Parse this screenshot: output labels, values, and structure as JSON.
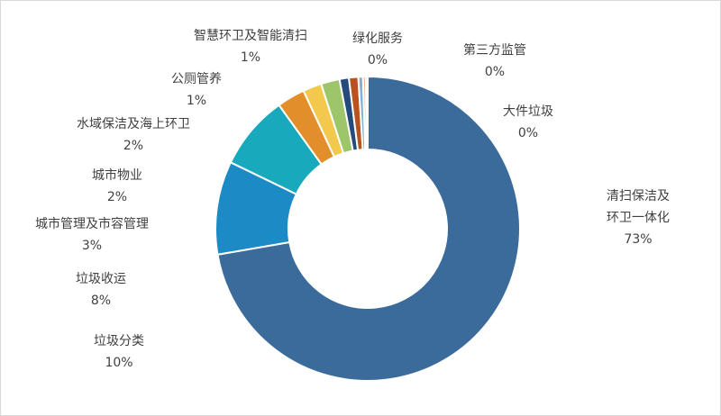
{
  "chart_data": {
    "type": "pie",
    "variant": "donut",
    "categories": [
      "清扫保洁及环卫一体化",
      "垃圾分类",
      "垃圾收运",
      "城市管理及市容管理",
      "城市物业",
      "水域保洁及海上环卫",
      "公厕管养",
      "智慧环卫及智能清扫",
      "绿化服务",
      "第三方监管",
      "大件垃圾"
    ],
    "values": [
      73,
      10,
      8,
      3,
      2,
      2,
      1,
      1,
      0.5,
      0.3,
      0.2
    ],
    "labels": [
      {
        "lines": [
          "清扫保洁及",
          "环卫一体化"
        ],
        "pct": "73%"
      },
      {
        "lines": [
          "垃圾分类"
        ],
        "pct": "10%"
      },
      {
        "lines": [
          "垃圾收运"
        ],
        "pct": "8%"
      },
      {
        "lines": [
          "城市管理及市容管理"
        ],
        "pct": "3%"
      },
      {
        "lines": [
          "城市物业"
        ],
        "pct": "2%"
      },
      {
        "lines": [
          "水域保洁及海上环卫"
        ],
        "pct": "2%"
      },
      {
        "lines": [
          "公厕管养"
        ],
        "pct": "1%"
      },
      {
        "lines": [
          "智慧环卫及智能清扫"
        ],
        "pct": "1%"
      },
      {
        "lines": [
          "绿化服务"
        ],
        "pct": "0%"
      },
      {
        "lines": [
          "第三方监管"
        ],
        "pct": "0%"
      },
      {
        "lines": [
          "大件垃圾"
        ],
        "pct": "0%"
      }
    ],
    "colors": [
      "#3a6b9b",
      "#1c8ac4",
      "#19a9bd",
      "#e28e2a",
      "#f3c94d",
      "#9dc569",
      "#244b7c",
      "#b9521c",
      "#7fb3d5",
      "#efb0a2",
      "#5e7d34"
    ],
    "legend": "none"
  }
}
